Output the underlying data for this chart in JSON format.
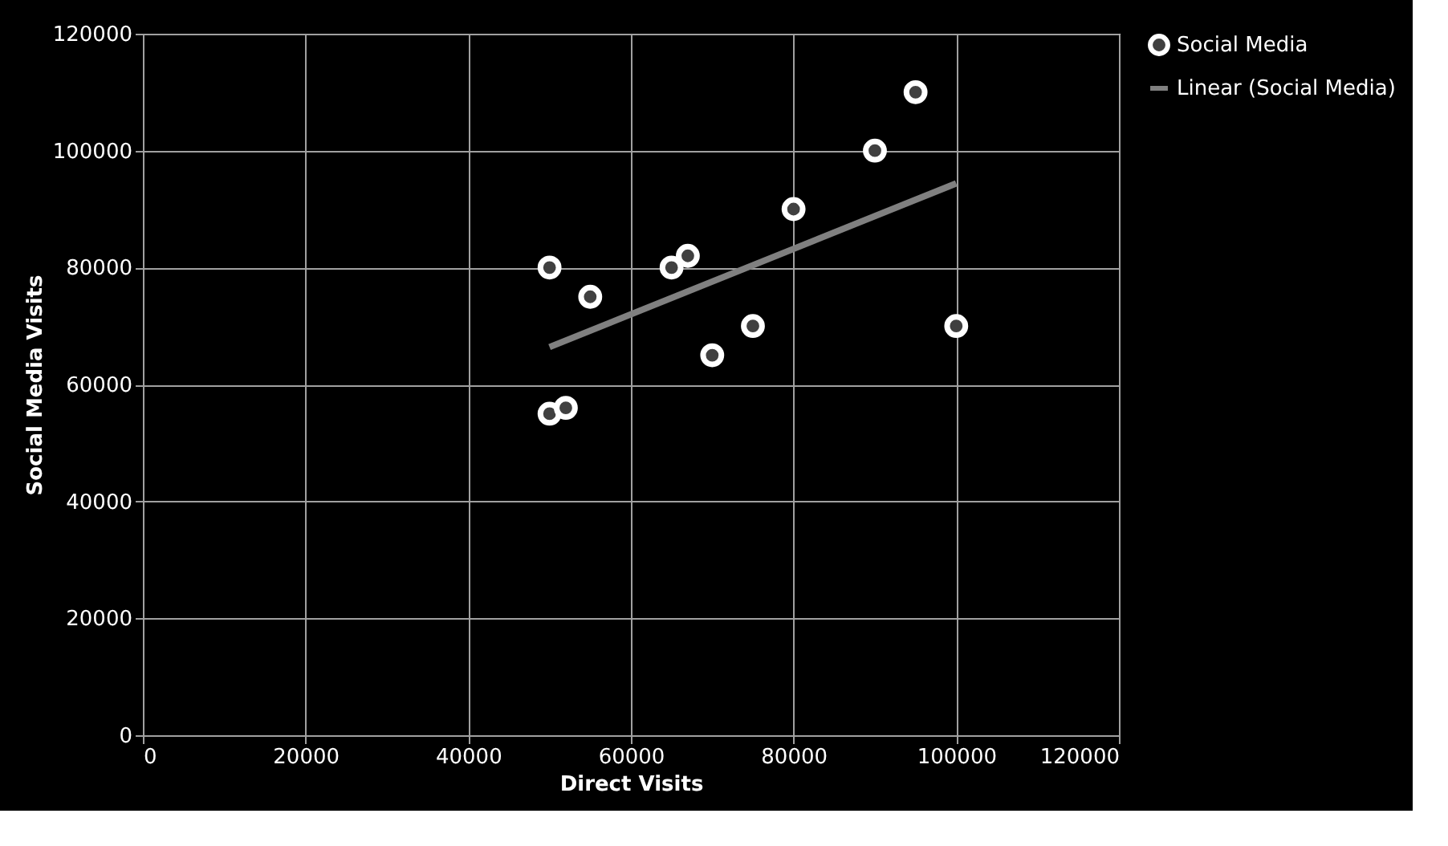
{
  "chart_data": {
    "type": "scatter",
    "xlabel": "Direct Visits",
    "ylabel": "Social Media Visits",
    "xlim": [
      0,
      120000
    ],
    "xticks": [
      0,
      20000,
      40000,
      60000,
      80000,
      100000,
      120000
    ],
    "ylim": [
      0,
      120000
    ],
    "yticks": [
      0,
      20000,
      40000,
      60000,
      80000,
      100000,
      120000
    ],
    "grid": true,
    "legend": "right",
    "series": [
      {
        "name": "Social Media",
        "color": "#ffffff",
        "marker": "circle",
        "x": [
          50000,
          50000,
          52000,
          55000,
          65000,
          67000,
          70000,
          75000,
          80000,
          90000,
          95000,
          100000
        ],
        "values": [
          80000,
          55000,
          56000,
          75000,
          80000,
          82000,
          65000,
          70000,
          90000,
          100000,
          110000,
          70000
        ]
      },
      {
        "name": "Linear (Social Media)",
        "type": "line",
        "color": "#808080",
        "line_style": "solid",
        "x": [
          50000,
          100000
        ],
        "values": [
          66400,
          94400
        ]
      }
    ]
  }
}
